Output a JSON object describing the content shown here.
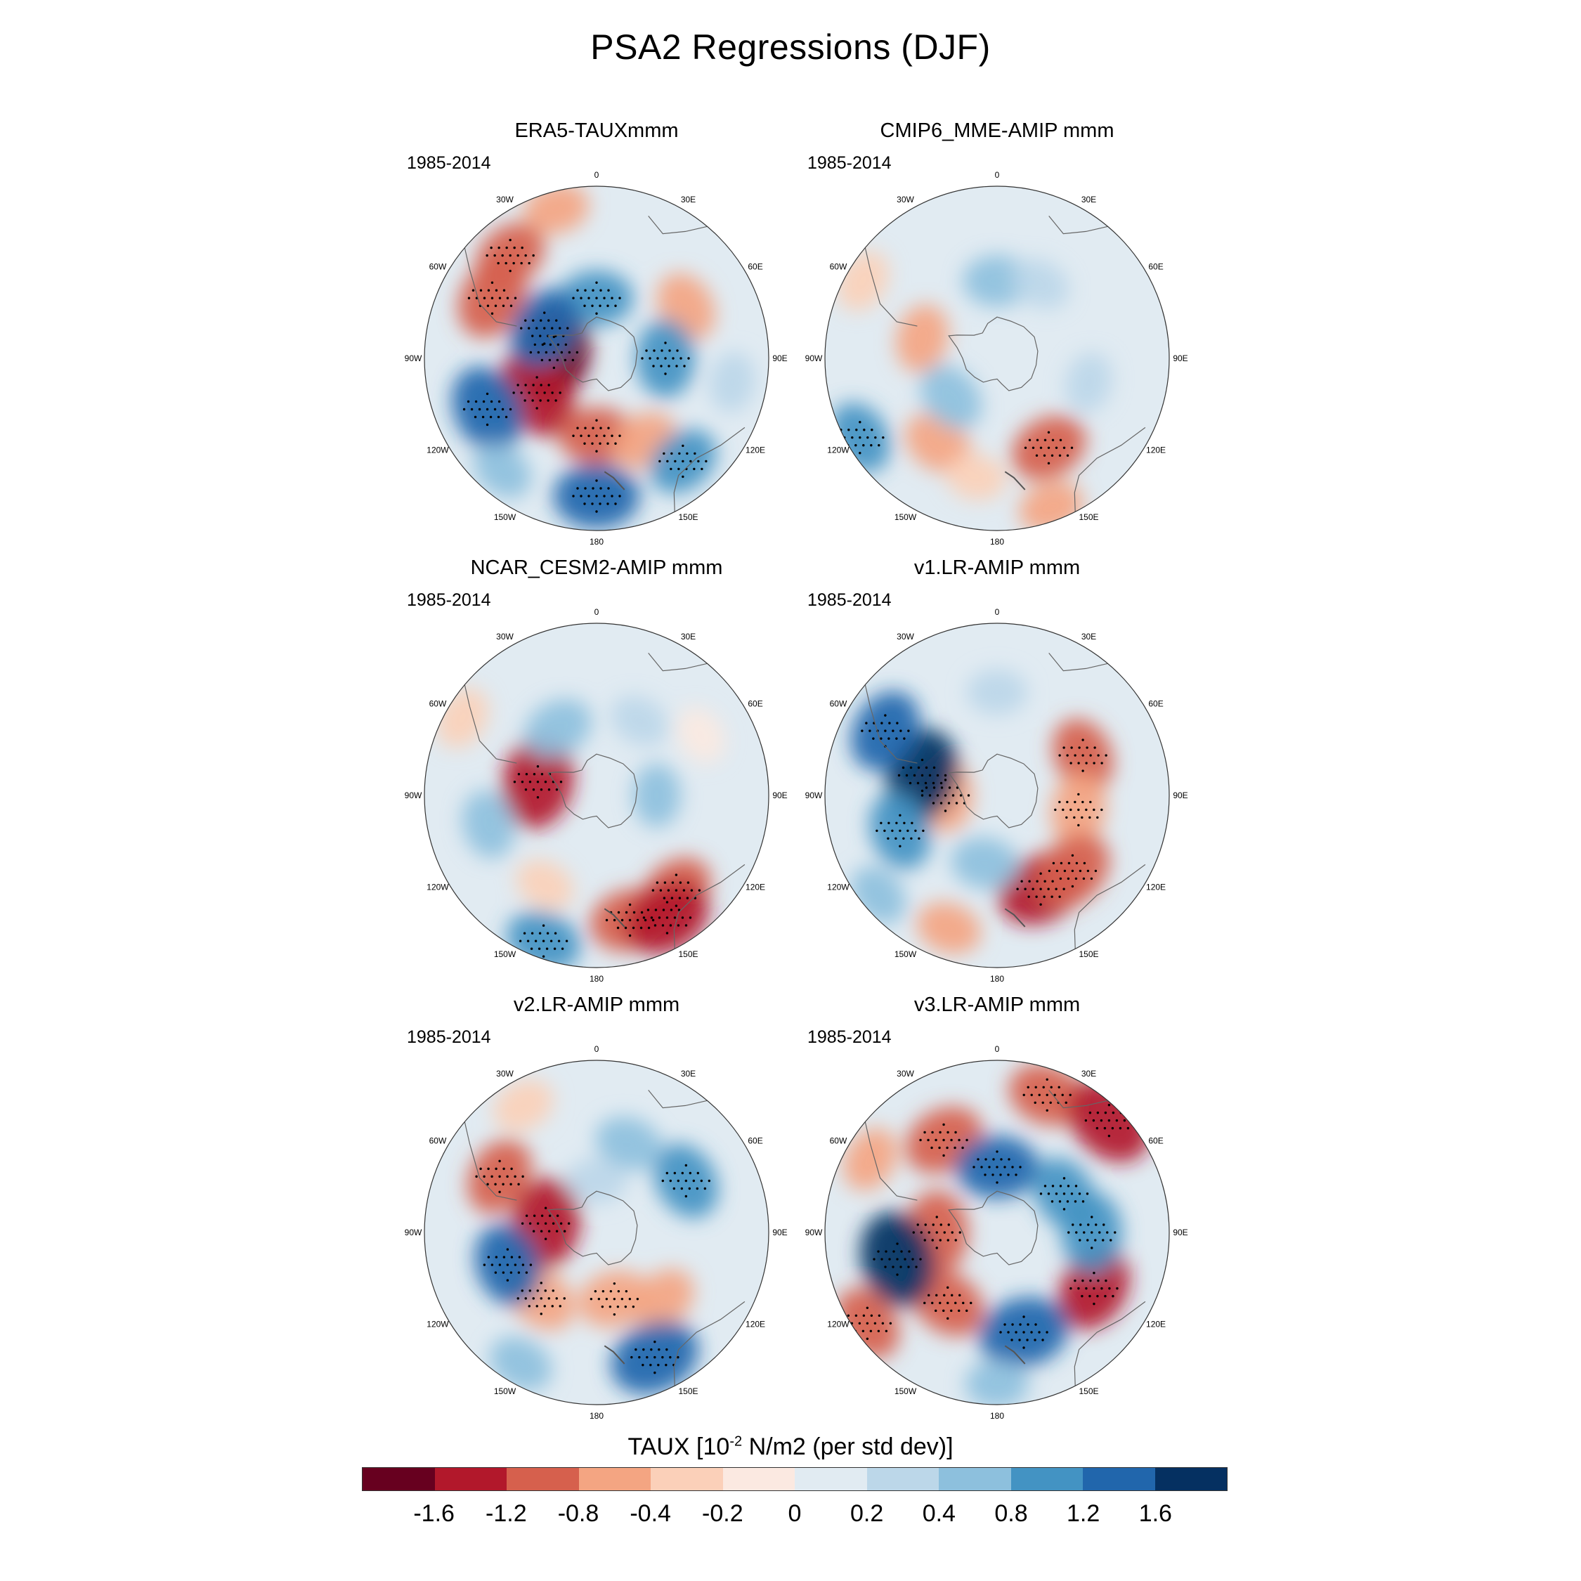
{
  "title": "PSA2 Regressions (DJF)",
  "chart_data": {
    "type": "heatmap",
    "projection": "south polar stereographic",
    "variable": "TAUX",
    "colorbar_title_parts": {
      "pre": "TAUX [10",
      "exp": "-2",
      "post": " N/m2 (per std dev)]"
    },
    "colorbar_levels": [
      "-1.6",
      "-1.2",
      "-0.8",
      "-0.4",
      "-0.2",
      "0",
      "0.2",
      "0.4",
      "0.8",
      "1.2",
      "1.6"
    ],
    "colorbar_colors": [
      "#67001f",
      "#b2182b",
      "#d6604d",
      "#f4a582",
      "#fbd0b9",
      "#fbe9e1",
      "#e1ebf2",
      "#bcd7e9",
      "#8dc0dd",
      "#4393c3",
      "#2166ac",
      "#053061"
    ],
    "longitude_labels": [
      "0",
      "30E",
      "60E",
      "90E",
      "120E",
      "150E",
      "180",
      "150W",
      "120W",
      "90W",
      "60W",
      "30W"
    ],
    "panels": [
      {
        "title": "ERA5-TAUXmmm",
        "period": "1985-2014",
        "blobs": [
          {
            "lon": 300,
            "r": 0.7,
            "v": -1.2
          },
          {
            "lon": 320,
            "r": 0.78,
            "v": -0.9
          },
          {
            "lon": 345,
            "r": 0.9,
            "v": -0.5
          },
          {
            "lon": 278,
            "r": 0.25,
            "v": -1.7
          },
          {
            "lon": 240,
            "r": 0.4,
            "v": -1.5
          },
          {
            "lon": 180,
            "r": 0.45,
            "v": -0.9
          },
          {
            "lon": 60,
            "r": 0.6,
            "v": -0.7
          },
          {
            "lon": 150,
            "r": 0.55,
            "v": -0.6
          },
          {
            "lon": 0,
            "r": 0.35,
            "v": 0.8
          },
          {
            "lon": 300,
            "r": 0.35,
            "v": 1.2
          },
          {
            "lon": 90,
            "r": 0.4,
            "v": 1.0
          },
          {
            "lon": 245,
            "r": 0.7,
            "v": 1.4
          },
          {
            "lon": 180,
            "r": 0.8,
            "v": 1.3
          },
          {
            "lon": 140,
            "r": 0.78,
            "v": 0.8
          },
          {
            "lon": 220,
            "r": 0.85,
            "v": 0.4
          },
          {
            "lon": 100,
            "r": 0.8,
            "v": 0.3
          }
        ]
      },
      {
        "title": "CMIP6_MME-AMIP  mmm",
        "period": "1985-2014",
        "blobs": [
          {
            "lon": 215,
            "r": 0.6,
            "v": -0.7
          },
          {
            "lon": 190,
            "r": 0.7,
            "v": -0.3
          },
          {
            "lon": 285,
            "r": 0.45,
            "v": -0.6
          },
          {
            "lon": 300,
            "r": 0.9,
            "v": -0.4
          },
          {
            "lon": 160,
            "r": 0.92,
            "v": -0.5
          },
          {
            "lon": 150,
            "r": 0.6,
            "v": -1.0
          },
          {
            "lon": 0,
            "r": 0.45,
            "v": 0.6
          },
          {
            "lon": 230,
            "r": 0.35,
            "v": 0.7
          },
          {
            "lon": 240,
            "r": 0.92,
            "v": 0.8
          },
          {
            "lon": 30,
            "r": 0.5,
            "v": 0.3
          },
          {
            "lon": 105,
            "r": 0.55,
            "v": 0.3
          }
        ]
      },
      {
        "title": "NCAR_CESM2-AMIP  mmm",
        "period": "1985-2014",
        "blobs": [
          {
            "lon": 165,
            "r": 0.75,
            "v": -1.1
          },
          {
            "lon": 140,
            "r": 0.72,
            "v": -0.9
          },
          {
            "lon": 150,
            "r": 0.82,
            "v": -1.4
          },
          {
            "lon": 283,
            "r": 0.35,
            "v": -1.6
          },
          {
            "lon": 300,
            "r": 0.9,
            "v": -0.4
          },
          {
            "lon": 210,
            "r": 0.6,
            "v": -0.3
          },
          {
            "lon": 60,
            "r": 0.7,
            "v": -0.2
          },
          {
            "lon": 330,
            "r": 0.45,
            "v": 0.7
          },
          {
            "lon": 200,
            "r": 0.9,
            "v": 0.9
          },
          {
            "lon": 255,
            "r": 0.65,
            "v": 0.6
          },
          {
            "lon": 90,
            "r": 0.35,
            "v": 0.4
          },
          {
            "lon": 30,
            "r": 0.5,
            "v": 0.3
          }
        ]
      },
      {
        "title": "v1.LR-AMIP  mmm",
        "period": "1985-2014",
        "blobs": [
          {
            "lon": 65,
            "r": 0.55,
            "v": -0.9
          },
          {
            "lon": 100,
            "r": 0.48,
            "v": -0.8
          },
          {
            "lon": 155,
            "r": 0.6,
            "v": -1.4
          },
          {
            "lon": 135,
            "r": 0.62,
            "v": -1.2
          },
          {
            "lon": 270,
            "r": 0.3,
            "v": -0.8
          },
          {
            "lon": 200,
            "r": 0.82,
            "v": -0.5
          },
          {
            "lon": 285,
            "r": 0.45,
            "v": 1.6
          },
          {
            "lon": 300,
            "r": 0.75,
            "v": 1.2
          },
          {
            "lon": 250,
            "r": 0.6,
            "v": 1.0
          },
          {
            "lon": 190,
            "r": 0.4,
            "v": 0.6
          },
          {
            "lon": 0,
            "r": 0.6,
            "v": 0.3
          },
          {
            "lon": 230,
            "r": 0.9,
            "v": 0.4
          }
        ]
      },
      {
        "title": "v2.LR-AMIP  mmm",
        "period": "1985-2014",
        "blobs": [
          {
            "lon": 300,
            "r": 0.65,
            "v": -1.0
          },
          {
            "lon": 280,
            "r": 0.3,
            "v": -1.5
          },
          {
            "lon": 220,
            "r": 0.5,
            "v": -0.8
          },
          {
            "lon": 165,
            "r": 0.4,
            "v": -0.8
          },
          {
            "lon": 135,
            "r": 0.55,
            "v": -0.6
          },
          {
            "lon": 330,
            "r": 0.85,
            "v": -0.4
          },
          {
            "lon": 250,
            "r": 0.55,
            "v": 1.2
          },
          {
            "lon": 155,
            "r": 0.8,
            "v": 1.5
          },
          {
            "lon": 60,
            "r": 0.6,
            "v": 1.0
          },
          {
            "lon": 20,
            "r": 0.55,
            "v": 0.6
          },
          {
            "lon": 210,
            "r": 0.88,
            "v": 0.5
          },
          {
            "lon": 0,
            "r": 0.3,
            "v": 0.3
          }
        ]
      },
      {
        "title": "v3.LR-AMIP  mmm",
        "period": "1985-2014",
        "blobs": [
          {
            "lon": 330,
            "r": 0.62,
            "v": -1.1
          },
          {
            "lon": 20,
            "r": 0.85,
            "v": -1.0
          },
          {
            "lon": 45,
            "r": 0.92,
            "v": -1.6
          },
          {
            "lon": 270,
            "r": 0.35,
            "v": -1.2
          },
          {
            "lon": 215,
            "r": 0.5,
            "v": -1.0
          },
          {
            "lon": 120,
            "r": 0.65,
            "v": -1.3
          },
          {
            "lon": 235,
            "r": 0.92,
            "v": -0.9
          },
          {
            "lon": 300,
            "r": 0.85,
            "v": -0.5
          },
          {
            "lon": 0,
            "r": 0.38,
            "v": 1.2
          },
          {
            "lon": 255,
            "r": 0.6,
            "v": 1.7
          },
          {
            "lon": 165,
            "r": 0.6,
            "v": 1.5
          },
          {
            "lon": 90,
            "r": 0.55,
            "v": 1.1
          },
          {
            "lon": 60,
            "r": 0.45,
            "v": 0.9
          },
          {
            "lon": 180,
            "r": 0.88,
            "v": 0.4
          }
        ]
      }
    ]
  }
}
